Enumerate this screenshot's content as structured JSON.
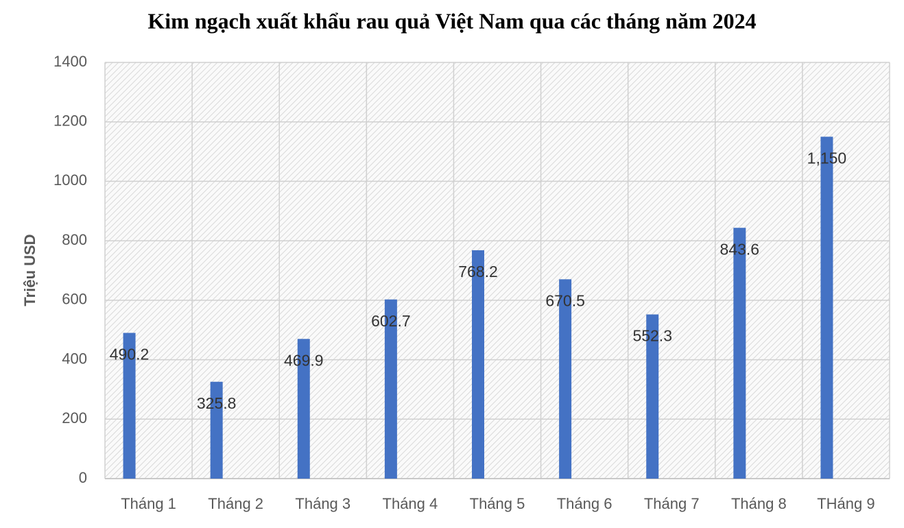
{
  "chart_data": {
    "type": "bar",
    "title": "Kim ngạch xuất khẩu rau quả Việt Nam qua các tháng năm 2024",
    "y_label": "Triệu USD",
    "categories": [
      "Tháng 1",
      "Tháng 2",
      "Tháng 3",
      "Tháng 4",
      "Tháng 5",
      "Tháng 6",
      "Tháng 7",
      "Tháng 8",
      "THáng 9"
    ],
    "values": [
      490.2,
      325.8,
      469.9,
      602.7,
      768.2,
      670.5,
      552.3,
      843.6,
      1150
    ],
    "value_labels": [
      "490.2",
      "325.8",
      "469.9",
      "602.7",
      "768.2",
      "670.5",
      "552.3",
      "843.6",
      "1,150"
    ],
    "color": "#4472c4",
    "ylim": [
      0,
      1400
    ],
    "yticks": [
      0,
      200,
      400,
      600,
      800,
      1000,
      1200,
      1400
    ],
    "grid": true
  }
}
